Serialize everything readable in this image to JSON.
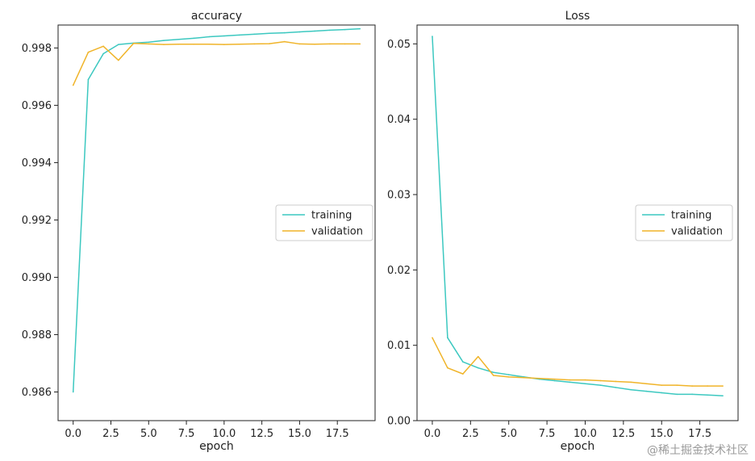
{
  "watermark": "@稀土掘金技术社区",
  "colors": {
    "training": "#3cc8c0",
    "validation": "#f0b429",
    "axis": "#222222"
  },
  "chart_data": [
    {
      "type": "line",
      "title": "accuracy",
      "xlabel": "epoch",
      "ylabel": "",
      "xlim": [
        -1,
        20
      ],
      "ylim": [
        0.985,
        0.9988
      ],
      "xticks": [
        0.0,
        2.5,
        5.0,
        7.5,
        10.0,
        12.5,
        15.0,
        17.5
      ],
      "xtick_labels": [
        "0.0",
        "2.5",
        "5.0",
        "7.5",
        "10.0",
        "12.5",
        "15.0",
        "17.5"
      ],
      "yticks": [
        0.986,
        0.988,
        0.99,
        0.992,
        0.994,
        0.996,
        0.998
      ],
      "ytick_labels": [
        "0.986",
        "0.988",
        "0.990",
        "0.992",
        "0.994",
        "0.996",
        "0.998"
      ],
      "legend_position": "center-right",
      "x": [
        0,
        1,
        2,
        3,
        4,
        5,
        6,
        7,
        8,
        9,
        10,
        11,
        12,
        13,
        14,
        15,
        16,
        17,
        18,
        19
      ],
      "series": [
        {
          "name": "training",
          "values": [
            0.986,
            0.9969,
            0.9978,
            0.99812,
            0.99817,
            0.9982,
            0.99826,
            0.9983,
            0.99834,
            0.99839,
            0.99842,
            0.99845,
            0.99848,
            0.99851,
            0.99853,
            0.99856,
            0.99859,
            0.99862,
            0.99864,
            0.99867
          ]
        },
        {
          "name": "validation",
          "values": [
            0.9967,
            0.99785,
            0.99806,
            0.99757,
            0.99816,
            0.99814,
            0.99812,
            0.99813,
            0.99813,
            0.99813,
            0.99812,
            0.99813,
            0.99814,
            0.99815,
            0.99822,
            0.99814,
            0.99813,
            0.99814,
            0.99814,
            0.99814
          ]
        }
      ]
    },
    {
      "type": "line",
      "title": "Loss",
      "xlabel": "epoch",
      "ylabel": "",
      "xlim": [
        -1,
        20
      ],
      "ylim": [
        0,
        0.0525
      ],
      "xticks": [
        0.0,
        2.5,
        5.0,
        7.5,
        10.0,
        12.5,
        15.0,
        17.5
      ],
      "xtick_labels": [
        "0.0",
        "2.5",
        "5.0",
        "7.5",
        "10.0",
        "12.5",
        "15.0",
        "17.5"
      ],
      "yticks": [
        0.0,
        0.01,
        0.02,
        0.03,
        0.04,
        0.05
      ],
      "ytick_labels": [
        "0.00",
        "0.01",
        "0.02",
        "0.03",
        "0.04",
        "0.05"
      ],
      "legend_position": "center-right",
      "x": [
        0,
        1,
        2,
        3,
        4,
        5,
        6,
        7,
        8,
        9,
        10,
        11,
        12,
        13,
        14,
        15,
        16,
        17,
        18,
        19
      ],
      "series": [
        {
          "name": "training",
          "values": [
            0.051,
            0.011,
            0.0078,
            0.007,
            0.0064,
            0.0061,
            0.0058,
            0.0055,
            0.0053,
            0.0051,
            0.0049,
            0.0047,
            0.0044,
            0.0041,
            0.0039,
            0.0037,
            0.0035,
            0.0035,
            0.0034,
            0.0033
          ]
        },
        {
          "name": "validation",
          "values": [
            0.011,
            0.007,
            0.0062,
            0.0085,
            0.006,
            0.0058,
            0.0057,
            0.0056,
            0.0055,
            0.0054,
            0.0054,
            0.0053,
            0.0052,
            0.0051,
            0.0049,
            0.0047,
            0.0047,
            0.0046,
            0.0046,
            0.0046
          ]
        }
      ]
    }
  ]
}
